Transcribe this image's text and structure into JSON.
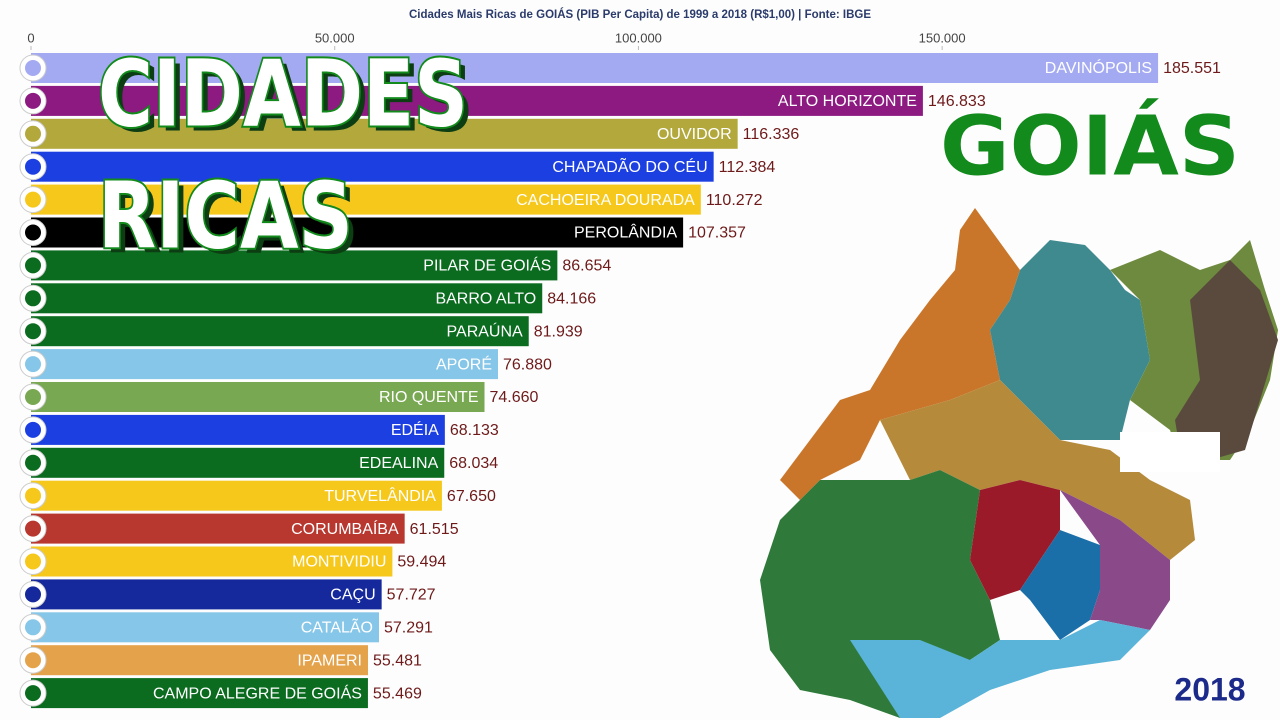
{
  "chart_data": {
    "type": "bar",
    "orientation": "horizontal",
    "title": "Cidades Mais Ricas de GOIÁS (PIB Per Capita) de 1999 a 2018 (R$1,00) | Fonte: IBGE",
    "categories": [
      "DAVINÓPOLIS",
      "ALTO HORIZONTE",
      "OUVIDOR",
      "CHAPADÃO DO CÉU",
      "CACHOEIRA DOURADA",
      "PEROLÂNDIA",
      "PILAR DE GOIÁS",
      "BARRO ALTO",
      "PARAÚNA",
      "APORÉ",
      "RIO QUENTE",
      "EDÉIA",
      "EDEALINA",
      "TURVELÂNDIA",
      "CORUMBAÍBA",
      "MONTIVIDIU",
      "CAÇU",
      "CATALÃO",
      "IPAMERI",
      "CAMPO ALEGRE DE GOIÁS"
    ],
    "values": [
      185551,
      146833,
      116336,
      112384,
      110272,
      107357,
      86654,
      84166,
      81939,
      76880,
      74660,
      68133,
      68034,
      67650,
      61515,
      59494,
      57727,
      57291,
      55481,
      55469
    ],
    "value_labels": [
      "185.551",
      "146.833",
      "116.336",
      "112.384",
      "110.272",
      "107.357",
      "86.654",
      "84.166",
      "81.939",
      "76.880",
      "74.660",
      "68.133",
      "68.034",
      "67.650",
      "61.515",
      "59.494",
      "57.727",
      "57.291",
      "55.481",
      "55.469"
    ],
    "colors": [
      "#a3aaf2",
      "#8c1a80",
      "#b3a83c",
      "#1c3fe2",
      "#f6c81c",
      "#000000",
      "#0b6b1f",
      "#0b6b1f",
      "#0b6b1f",
      "#86c6e8",
      "#79a852",
      "#1c3fe2",
      "#0b6b1f",
      "#f6c81c",
      "#b8372f",
      "#f6c81c",
      "#16299c",
      "#86c6e8",
      "#e4a24b",
      "#0b6b1f"
    ],
    "xlim": [
      0,
      202000
    ],
    "xticks": [
      0,
      {
        "value": 50000,
        "label": "50.000"
      },
      {
        "value": 100000,
        "label": "100.000"
      },
      {
        "value": 150000,
        "label": "150.000"
      }
    ],
    "overlay_title_lines": [
      "CIDADES",
      "RICAS"
    ],
    "region": "GOIÁS",
    "year": "2018"
  }
}
